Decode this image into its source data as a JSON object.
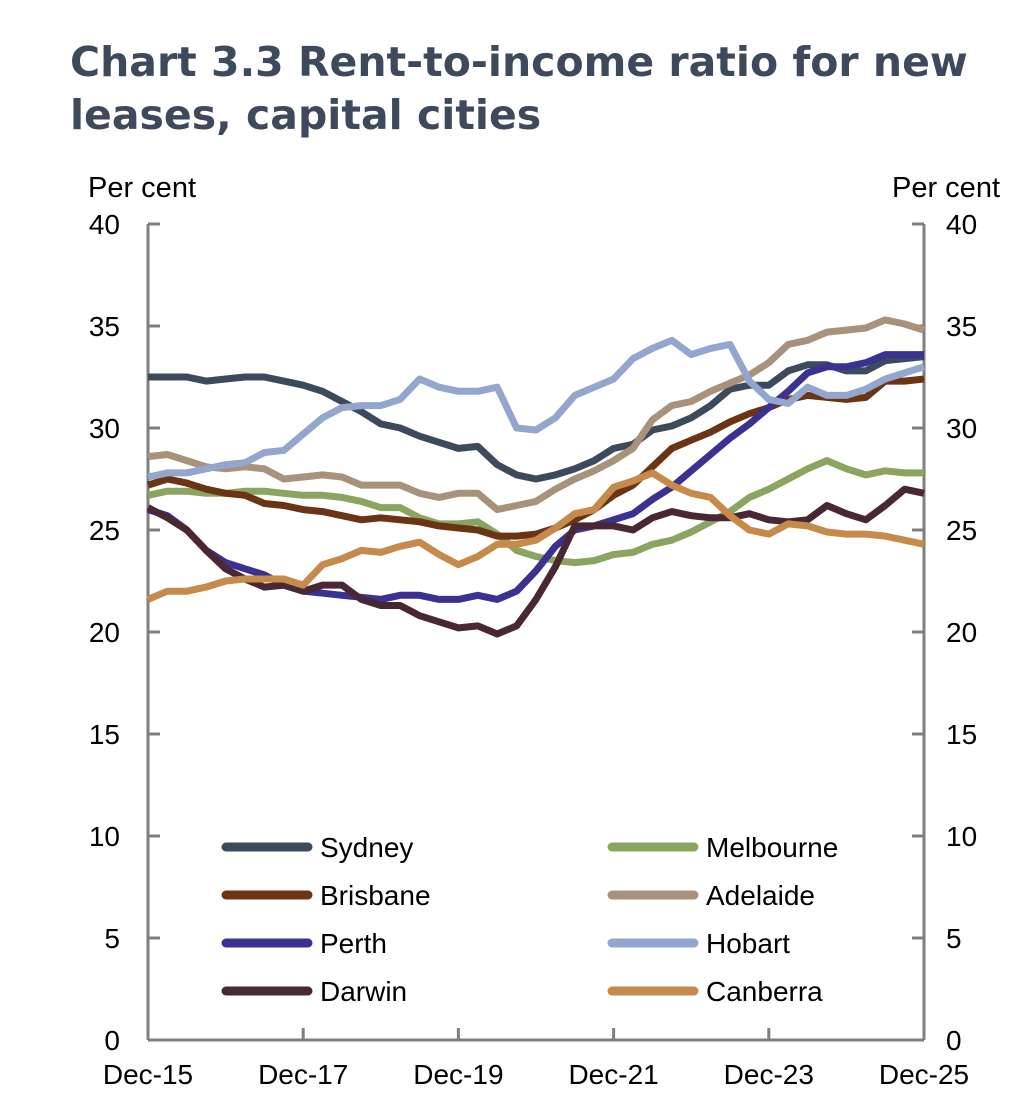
{
  "title": "Chart 3.3 Rent-to-income ratio for new leases, capital cities",
  "chart_data": {
    "type": "line",
    "title": "Chart 3.3 Rent-to-income ratio for new leases, capital cities",
    "ylabel_left": "Per cent",
    "ylabel_right": "Per cent",
    "ylim": [
      0,
      40
    ],
    "yticks": [
      "0",
      "5",
      "10",
      "15",
      "20",
      "25",
      "30",
      "35",
      "40"
    ],
    "xlim": [
      "2015-12",
      "2025-12"
    ],
    "xticks": [
      "Dec-15",
      "Dec-17",
      "Dec-19",
      "Dec-21",
      "Dec-23",
      "Dec-25"
    ],
    "grid": false,
    "legend_position": "bottom",
    "x": [
      "2015-12",
      "2016-03",
      "2016-06",
      "2016-09",
      "2016-12",
      "2017-03",
      "2017-06",
      "2017-09",
      "2017-12",
      "2018-03",
      "2018-06",
      "2018-09",
      "2018-12",
      "2019-03",
      "2019-06",
      "2019-09",
      "2019-12",
      "2020-03",
      "2020-06",
      "2020-09",
      "2020-12",
      "2021-03",
      "2021-06",
      "2021-09",
      "2021-12",
      "2022-03",
      "2022-06",
      "2022-09",
      "2022-12",
      "2023-03",
      "2023-06",
      "2023-09",
      "2023-12",
      "2024-03",
      "2024-06",
      "2024-09",
      "2024-12",
      "2025-03",
      "2025-06",
      "2025-09",
      "2025-12"
    ],
    "series": [
      {
        "name": "Sydney",
        "color": "#3d4a5c",
        "values": [
          32.5,
          32.5,
          32.5,
          32.3,
          32.4,
          32.5,
          32.5,
          32.3,
          32.1,
          31.8,
          31.3,
          30.8,
          30.2,
          30.0,
          29.6,
          29.3,
          29.0,
          29.1,
          28.2,
          27.7,
          27.5,
          27.7,
          28.0,
          28.4,
          29.0,
          29.2,
          29.9,
          30.1,
          30.5,
          31.1,
          31.9,
          32.1,
          32.1,
          32.8,
          33.1,
          33.1,
          32.8,
          32.8,
          33.3,
          33.4,
          33.5
        ]
      },
      {
        "name": "Melbourne",
        "color": "#8aa55f",
        "values": [
          26.7,
          26.9,
          26.9,
          26.8,
          26.8,
          26.9,
          26.9,
          26.8,
          26.7,
          26.7,
          26.6,
          26.4,
          26.1,
          26.1,
          25.6,
          25.3,
          25.3,
          25.4,
          24.8,
          24.0,
          23.7,
          23.5,
          23.4,
          23.5,
          23.8,
          23.9,
          24.3,
          24.5,
          24.9,
          25.4,
          25.9,
          26.6,
          27.0,
          27.5,
          28.0,
          28.4,
          28.0,
          27.7,
          27.9,
          27.8,
          27.8
        ]
      },
      {
        "name": "Brisbane",
        "color": "#6b3415",
        "values": [
          27.2,
          27.5,
          27.3,
          27.0,
          26.8,
          26.7,
          26.3,
          26.2,
          26.0,
          25.9,
          25.7,
          25.5,
          25.6,
          25.5,
          25.4,
          25.2,
          25.1,
          25.0,
          24.7,
          24.7,
          24.8,
          25.1,
          25.5,
          26.0,
          26.7,
          27.2,
          28.1,
          29.0,
          29.4,
          29.8,
          30.3,
          30.7,
          31.0,
          31.4,
          31.6,
          31.5,
          31.4,
          31.5,
          32.3,
          32.3,
          32.4
        ]
      },
      {
        "name": "Adelaide",
        "color": "#a8927a",
        "values": [
          28.6,
          28.7,
          28.4,
          28.1,
          28.0,
          28.1,
          28.0,
          27.5,
          27.6,
          27.7,
          27.6,
          27.2,
          27.2,
          27.2,
          26.8,
          26.6,
          26.8,
          26.8,
          26.0,
          26.2,
          26.4,
          27.0,
          27.5,
          27.9,
          28.4,
          29.0,
          30.4,
          31.1,
          31.3,
          31.8,
          32.2,
          32.6,
          33.2,
          34.1,
          34.3,
          34.7,
          34.8,
          34.9,
          35.3,
          35.1,
          34.8
        ]
      },
      {
        "name": "Perth",
        "color": "#3b3191",
        "values": [
          26.0,
          25.7,
          25.0,
          24.0,
          23.4,
          23.1,
          22.8,
          22.3,
          22.0,
          21.9,
          21.8,
          21.7,
          21.6,
          21.8,
          21.8,
          21.6,
          21.6,
          21.8,
          21.6,
          22.0,
          23.0,
          24.2,
          25.0,
          25.2,
          25.5,
          25.8,
          26.5,
          27.1,
          27.9,
          28.7,
          29.5,
          30.2,
          31.0,
          31.8,
          32.7,
          33.0,
          33.0,
          33.2,
          33.6,
          33.6,
          33.6
        ]
      },
      {
        "name": "Hobart",
        "color": "#93a6cd",
        "values": [
          27.6,
          27.8,
          27.8,
          28.0,
          28.2,
          28.3,
          28.8,
          28.9,
          29.7,
          30.5,
          31.0,
          31.1,
          31.1,
          31.4,
          32.4,
          32.0,
          31.8,
          31.8,
          32.0,
          30.0,
          29.9,
          30.5,
          31.6,
          32.0,
          32.4,
          33.4,
          33.9,
          34.3,
          33.6,
          33.9,
          34.1,
          32.3,
          31.4,
          31.2,
          32.0,
          31.6,
          31.6,
          31.9,
          32.4,
          32.7,
          33.0
        ]
      },
      {
        "name": "Darwin",
        "color": "#4a2833",
        "values": [
          26.1,
          25.6,
          25.0,
          24.0,
          23.1,
          22.6,
          22.2,
          22.3,
          22.0,
          22.3,
          22.3,
          21.6,
          21.3,
          21.3,
          20.8,
          20.5,
          20.2,
          20.3,
          19.9,
          20.3,
          21.6,
          23.2,
          25.2,
          25.2,
          25.2,
          25.0,
          25.6,
          25.9,
          25.7,
          25.6,
          25.6,
          25.8,
          25.5,
          25.4,
          25.5,
          26.2,
          25.8,
          25.5,
          26.2,
          27.0,
          26.8
        ]
      },
      {
        "name": "Canberra",
        "color": "#c68a4a",
        "values": [
          21.6,
          22.0,
          22.0,
          22.2,
          22.5,
          22.6,
          22.6,
          22.6,
          22.3,
          23.3,
          23.6,
          24.0,
          23.9,
          24.2,
          24.4,
          23.8,
          23.3,
          23.7,
          24.3,
          24.3,
          24.5,
          25.1,
          25.8,
          26.0,
          27.1,
          27.4,
          27.8,
          27.2,
          26.8,
          26.6,
          25.7,
          25.0,
          24.8,
          25.3,
          25.2,
          24.9,
          24.8,
          24.8,
          24.7,
          24.5,
          24.3
        ]
      }
    ]
  }
}
